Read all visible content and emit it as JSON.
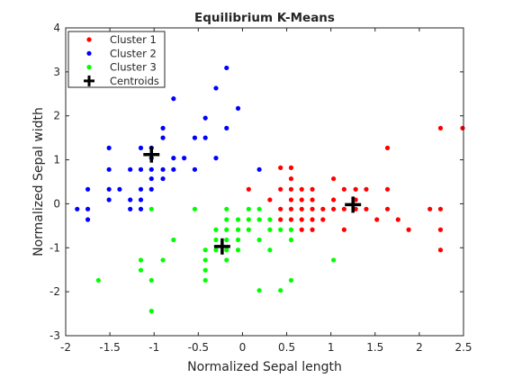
{
  "chart_data": {
    "type": "scatter",
    "title": "Equilibrium K-Means",
    "xlabel": "Normalized Sepal length",
    "ylabel": "Normalized Sepal width",
    "xlim": [
      -2,
      2.5
    ],
    "ylim": [
      -3,
      4
    ],
    "xticks": [
      -2,
      -1.5,
      -1,
      -0.5,
      0,
      0.5,
      1,
      1.5,
      2,
      2.5
    ],
    "yticks": [
      -3,
      -2,
      -1,
      0,
      1,
      2,
      3,
      4
    ],
    "grid": false,
    "legend_position": "top-left",
    "series": [
      {
        "name": "Cluster 1",
        "color": "#ff0000",
        "marker": "dot",
        "points": [
          [
            0.07,
            0.33
          ],
          [
            0.31,
            0.09
          ],
          [
            0.43,
            0.82
          ],
          [
            0.55,
            0.82
          ],
          [
            0.55,
            0.57
          ],
          [
            0.43,
            0.33
          ],
          [
            0.55,
            0.33
          ],
          [
            0.55,
            0.09
          ],
          [
            0.67,
            0.33
          ],
          [
            0.79,
            0.33
          ],
          [
            0.67,
            0.09
          ],
          [
            0.79,
            0.09
          ],
          [
            0.43,
            -0.12
          ],
          [
            0.55,
            -0.12
          ],
          [
            0.67,
            -0.12
          ],
          [
            0.79,
            -0.12
          ],
          [
            0.91,
            -0.12
          ],
          [
            0.43,
            -0.36
          ],
          [
            0.55,
            -0.36
          ],
          [
            0.67,
            -0.36
          ],
          [
            0.79,
            -0.36
          ],
          [
            0.91,
            -0.36
          ],
          [
            0.67,
            -0.59
          ],
          [
            0.79,
            -0.59
          ],
          [
            1.03,
            0.57
          ],
          [
            1.03,
            0.09
          ],
          [
            1.03,
            -0.12
          ],
          [
            1.15,
            0.33
          ],
          [
            1.15,
            -0.12
          ],
          [
            1.15,
            -0.59
          ],
          [
            1.28,
            0.33
          ],
          [
            1.28,
            0.09
          ],
          [
            1.28,
            -0.12
          ],
          [
            1.4,
            0.33
          ],
          [
            1.4,
            -0.12
          ],
          [
            1.52,
            -0.36
          ],
          [
            1.64,
            1.27
          ],
          [
            1.64,
            0.33
          ],
          [
            1.64,
            -0.12
          ],
          [
            1.76,
            -0.36
          ],
          [
            1.88,
            -0.59
          ],
          [
            2.12,
            -0.12
          ],
          [
            2.24,
            1.72
          ],
          [
            2.24,
            -0.12
          ],
          [
            2.24,
            -0.59
          ],
          [
            2.24,
            -1.05
          ],
          [
            2.49,
            1.72
          ]
        ]
      },
      {
        "name": "Cluster 2",
        "color": "#0000ff",
        "marker": "dot",
        "points": [
          [
            -1.87,
            -0.12
          ],
          [
            -1.75,
            0.33
          ],
          [
            -1.75,
            -0.12
          ],
          [
            -1.75,
            -0.36
          ],
          [
            -1.51,
            1.27
          ],
          [
            -1.51,
            0.78
          ],
          [
            -1.51,
            0.33
          ],
          [
            -1.51,
            0.09
          ],
          [
            -1.39,
            0.33
          ],
          [
            -1.27,
            0.78
          ],
          [
            -1.27,
            0.09
          ],
          [
            -1.27,
            -0.12
          ],
          [
            -1.15,
            1.27
          ],
          [
            -1.15,
            0.78
          ],
          [
            -1.15,
            0.33
          ],
          [
            -1.15,
            0.09
          ],
          [
            -1.15,
            -0.12
          ],
          [
            -1.03,
            1.27
          ],
          [
            -1.03,
            1.04
          ],
          [
            -1.03,
            0.78
          ],
          [
            -1.03,
            0.57
          ],
          [
            -1.03,
            0.33
          ],
          [
            -0.9,
            1.72
          ],
          [
            -0.9,
            1.5
          ],
          [
            -0.9,
            0.78
          ],
          [
            -0.9,
            0.57
          ],
          [
            -0.78,
            1.04
          ],
          [
            -0.78,
            0.78
          ],
          [
            -0.78,
            2.39
          ],
          [
            -0.66,
            1.04
          ],
          [
            -0.54,
            1.5
          ],
          [
            -0.54,
            0.78
          ],
          [
            -0.42,
            1.5
          ],
          [
            -0.42,
            1.95
          ],
          [
            -0.3,
            2.63
          ],
          [
            -0.3,
            1.04
          ],
          [
            -0.18,
            3.09
          ],
          [
            -0.18,
            1.72
          ],
          [
            -0.05,
            2.17
          ],
          [
            0.19,
            0.78
          ]
        ]
      },
      {
        "name": "Cluster 3",
        "color": "#00ff00",
        "marker": "dot",
        "points": [
          [
            -1.63,
            -1.74
          ],
          [
            -1.15,
            -1.28
          ],
          [
            -1.15,
            -1.51
          ],
          [
            -1.03,
            -0.12
          ],
          [
            -1.03,
            -1.74
          ],
          [
            -1.03,
            -2.44
          ],
          [
            -0.9,
            -1.28
          ],
          [
            -0.78,
            -0.82
          ],
          [
            -0.54,
            -0.12
          ],
          [
            -0.42,
            -1.05
          ],
          [
            -0.42,
            -1.28
          ],
          [
            -0.42,
            -1.51
          ],
          [
            -0.42,
            -1.74
          ],
          [
            -0.3,
            -0.59
          ],
          [
            -0.3,
            -0.82
          ],
          [
            -0.3,
            -1.05
          ],
          [
            -0.18,
            -0.12
          ],
          [
            -0.18,
            -0.36
          ],
          [
            -0.18,
            -0.59
          ],
          [
            -0.18,
            -0.82
          ],
          [
            -0.18,
            -1.05
          ],
          [
            -0.18,
            -1.28
          ],
          [
            -0.05,
            -0.36
          ],
          [
            -0.05,
            -0.59
          ],
          [
            -0.05,
            -0.82
          ],
          [
            -0.05,
            -1.05
          ],
          [
            0.07,
            -0.12
          ],
          [
            0.07,
            -0.36
          ],
          [
            0.07,
            -0.59
          ],
          [
            0.19,
            -0.12
          ],
          [
            0.19,
            -0.36
          ],
          [
            0.19,
            -0.82
          ],
          [
            0.19,
            -1.97
          ],
          [
            0.31,
            -0.36
          ],
          [
            0.31,
            -0.59
          ],
          [
            0.31,
            -1.05
          ],
          [
            0.43,
            -0.59
          ],
          [
            0.43,
            -1.97
          ],
          [
            0.55,
            -0.59
          ],
          [
            0.55,
            -0.82
          ],
          [
            0.55,
            -1.74
          ],
          [
            1.03,
            -1.28
          ]
        ]
      }
    ],
    "centroids": {
      "name": "Centroids",
      "color": "#000000",
      "marker": "plus",
      "points": [
        [
          1.25,
          -0.02
        ],
        [
          -1.03,
          1.12
        ],
        [
          -0.23,
          -0.97
        ]
      ]
    }
  }
}
